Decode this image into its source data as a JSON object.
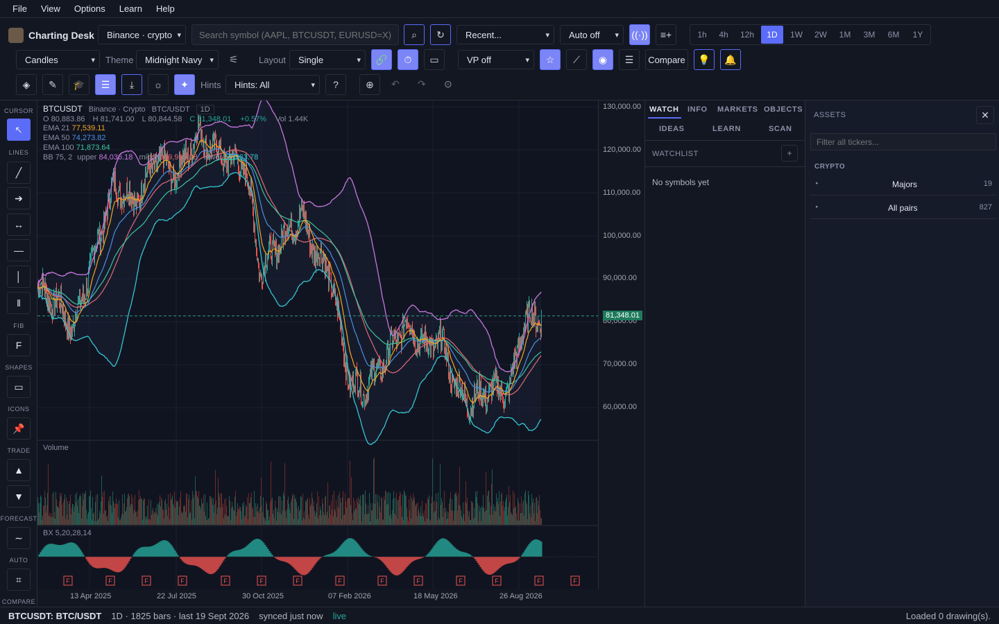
{
  "menu": [
    "File",
    "View",
    "Options",
    "Learn",
    "Help"
  ],
  "app": {
    "title": "Charting Desk"
  },
  "toolbar": {
    "exchange": "Binance · crypto",
    "search_placeholder": "Search symbol (AAPL, BTCUSDT, EURUSD=X)",
    "recent": "Recent...",
    "auto": "Auto off",
    "timeframes": [
      "1h",
      "4h",
      "12h",
      "1D",
      "1W",
      "2W",
      "1M",
      "3M",
      "6M",
      "1Y"
    ],
    "active_timeframe": "1D",
    "chart_type": "Candles",
    "theme_label": "Theme",
    "theme": "Midnight Navy",
    "layout_label": "Layout",
    "layout": "Single",
    "vp": "VP off",
    "compare": "Compare",
    "hints_label": "Hints",
    "hints": "Hints: All"
  },
  "sidebar": {
    "sections": [
      "CURSOR",
      "LINES",
      "FIB",
      "SHAPES",
      "ICONS",
      "TRADE",
      "FORECAST",
      "AUTO",
      "COMPARE"
    ],
    "fib_glyph": "F"
  },
  "chart": {
    "symbol": "BTCUSDT",
    "source": "Binance · Crypto",
    "pair": "BTC/USDT",
    "interval": "1D",
    "ohlc": {
      "o": "O 80,883.86",
      "h": "H 81,741.00",
      "l": "L 80,844.58",
      "c": "C 81,348.01",
      "chg": "+0.57%",
      "vol": "Vol 1.44K"
    },
    "ema21": {
      "label": "EMA 21",
      "value": "77,539.11"
    },
    "ema50": {
      "label": "EMA 50",
      "value": "74,273.82"
    },
    "ema100": {
      "label": "EMA 100",
      "value": "71,873.64"
    },
    "bb": {
      "label": "BB 75, 2",
      "upper_label": "upper",
      "upper": "84,036.18",
      "middle_label": "middle",
      "middle": "69,999.98",
      "lower_label": "lower",
      "lower": "55,963.78"
    },
    "price_ticks": [
      "130,000.00",
      "120,000.00",
      "110,000.00",
      "100,000.00",
      "90,000.00",
      "80,000.00",
      "70,000.00",
      "60,000.00"
    ],
    "last_price": "81,348.01",
    "volume_label": "Volume",
    "osc_label": "BX 5,20,28,14",
    "marker": "F",
    "x_labels": [
      "13 Apr 2025",
      "22 Jul 2025",
      "30 Oct 2025",
      "07 Feb 2026",
      "18 May 2026",
      "26 Aug 2026"
    ],
    "colors": {
      "up": "#26a69a",
      "down": "#ef5350",
      "ema21": "#f5a623",
      "ema50": "#4a90e2",
      "ema100": "#3cc5a0",
      "bb_upper": "#c678dd",
      "bb_lower": "#36c6d3",
      "bb_mid": "#e06c75"
    }
  },
  "panel": {
    "tabs_row1": [
      "WATCH",
      "INFO",
      "MARKETS",
      "OBJECTS"
    ],
    "tabs_row2": [
      "IDEAS",
      "LEARN",
      "SCAN"
    ],
    "watchlist_title": "WATCHLIST",
    "empty": "No symbols yet"
  },
  "assets": {
    "title": "ASSETS",
    "filter_placeholder": "Filter all tickers...",
    "group": "CRYPTO",
    "items": [
      {
        "name": "Majors",
        "count": "19"
      },
      {
        "name": "All pairs",
        "count": "827"
      }
    ]
  },
  "status": {
    "symbol": "BTCUSDT: BTC/USDT",
    "info": "1D · 1825 bars · last 19 Sept 2026",
    "sync": "synced just now",
    "live": "live",
    "drawings": "Loaded 0 drawing(s)."
  }
}
